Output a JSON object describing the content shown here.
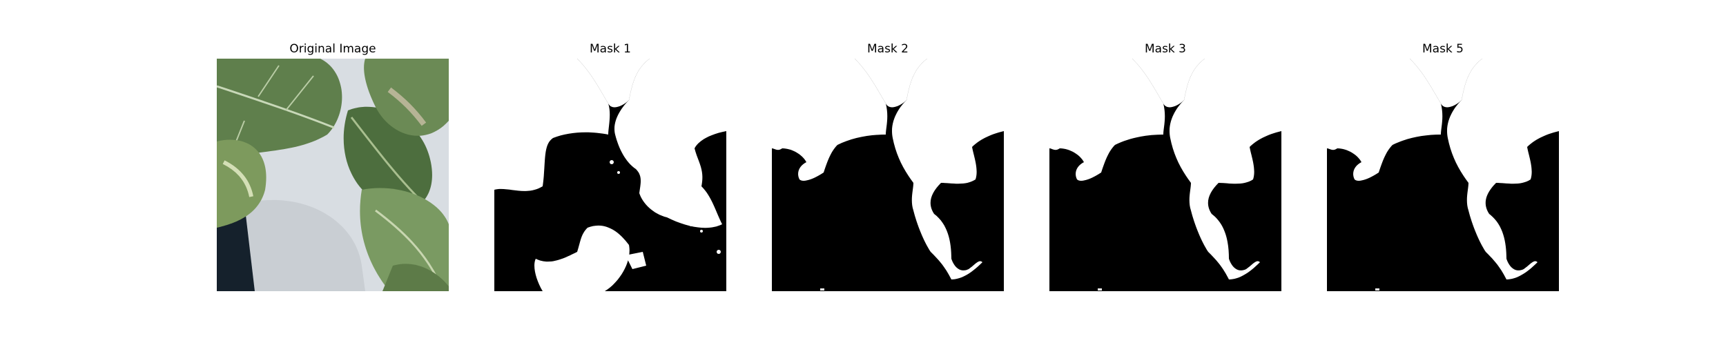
{
  "panels": [
    {
      "title": "Original Image",
      "kind": "photo"
    },
    {
      "title": "Mask 1",
      "kind": "mask"
    },
    {
      "title": "Mask 2",
      "kind": "mask"
    },
    {
      "title": "Mask 3",
      "kind": "mask"
    },
    {
      "title": "Mask 5",
      "kind": "mask"
    }
  ],
  "colors": {
    "mask_foreground": "#ffffff",
    "mask_background": "#000000",
    "leaf_dark": "#4d6e3e",
    "leaf_mid": "#6f9057",
    "leaf_light": "#b8c99a",
    "wall": "#dfe3e6",
    "pot_shadow": "#15212c"
  }
}
